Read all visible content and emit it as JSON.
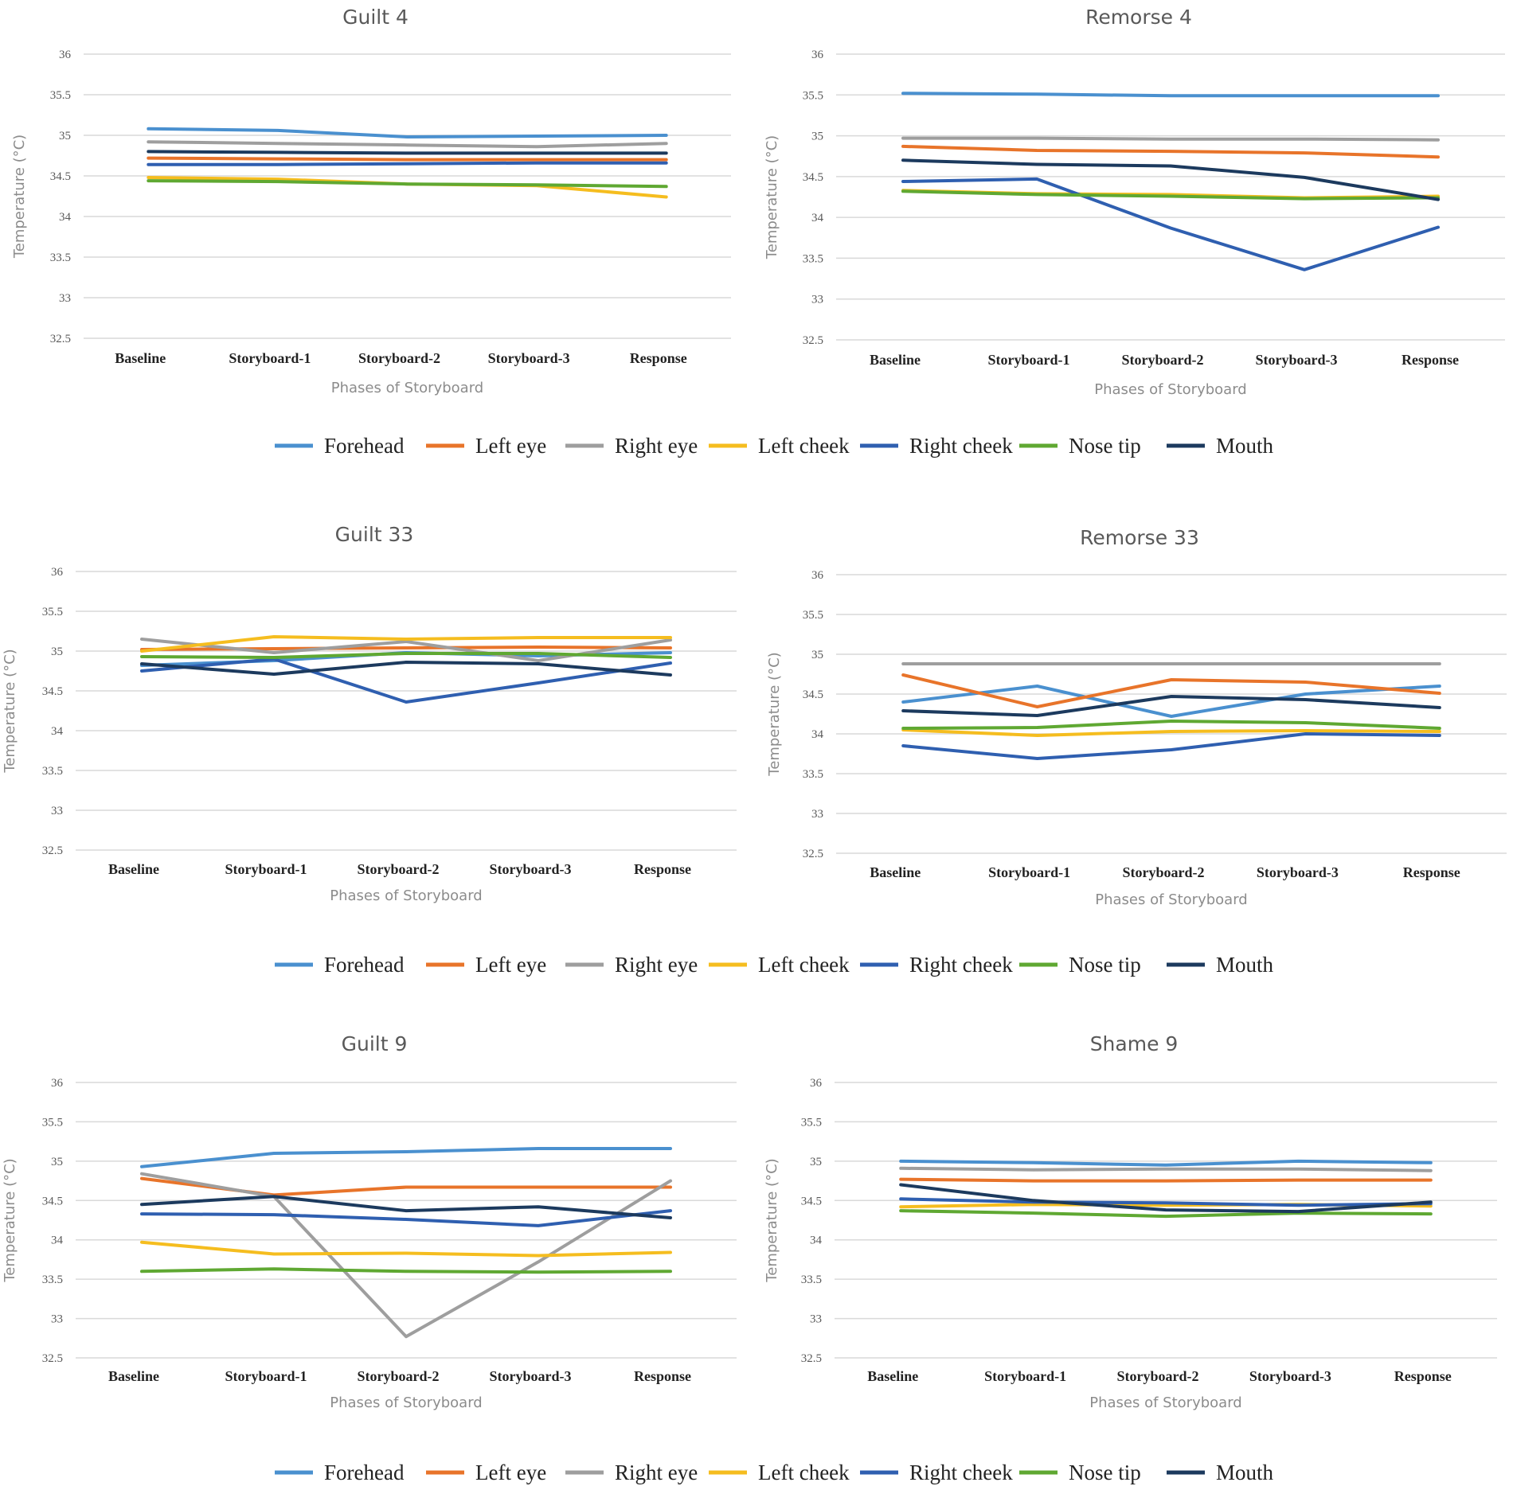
{
  "colors": {
    "Forehead": "#4a90cf",
    "Left eye": "#e8742a",
    "Right eye": "#9e9e9e",
    "Left cheek": "#f5bd1f",
    "Right cheek": "#2f5fb0",
    "Nose tip": "#5fa832",
    "Mouth": "#1c3a5e"
  },
  "legend": [
    "Forehead",
    "Left eye",
    "Right eye",
    "Left cheek",
    "Right cheek",
    "Nose tip",
    "Mouth"
  ],
  "chart_data": [
    {
      "type": "line",
      "title": "Guilt 4",
      "xlabel": "Phases of Storyboard",
      "ylabel": "Temperature (°C)",
      "categories": [
        "Baseline",
        "Storyboard-1",
        "Storyboard-2",
        "Storyboard-3",
        "Response"
      ],
      "ylim": [
        32.5,
        36
      ],
      "yticks": [
        "32.5",
        "33",
        "33.5",
        "34",
        "34.5",
        "35",
        "35.5",
        "36"
      ],
      "series": [
        {
          "name": "Forehead",
          "values": [
            35.08,
            35.06,
            34.98,
            34.99,
            35.0
          ]
        },
        {
          "name": "Left eye",
          "values": [
            34.72,
            34.71,
            34.7,
            34.7,
            34.7
          ]
        },
        {
          "name": "Right eye",
          "values": [
            34.92,
            34.9,
            34.88,
            34.86,
            34.9
          ]
        },
        {
          "name": "Left cheek",
          "values": [
            34.48,
            34.46,
            34.4,
            34.38,
            34.24
          ]
        },
        {
          "name": "Right cheek",
          "values": [
            34.64,
            34.64,
            34.65,
            34.66,
            34.66
          ]
        },
        {
          "name": "Nose tip",
          "values": [
            34.44,
            34.43,
            34.4,
            34.39,
            34.37
          ]
        },
        {
          "name": "Mouth",
          "values": [
            34.8,
            34.79,
            34.78,
            34.78,
            34.78
          ]
        }
      ]
    },
    {
      "type": "line",
      "title": "Remorse 4",
      "xlabel": "Phases of Storyboard",
      "ylabel": "Temperature (°C)",
      "categories": [
        "Baseline",
        "Storyboard-1",
        "Storyboard-2",
        "Storyboard-3",
        "Response"
      ],
      "ylim": [
        32.5,
        36
      ],
      "yticks": [
        "32.5",
        "33",
        "33.5",
        "34",
        "34.5",
        "35",
        "35.5",
        "36"
      ],
      "series": [
        {
          "name": "Forehead",
          "values": [
            35.52,
            35.51,
            35.49,
            35.49,
            35.49
          ]
        },
        {
          "name": "Left eye",
          "values": [
            34.87,
            34.82,
            34.81,
            34.79,
            34.74
          ]
        },
        {
          "name": "Right eye",
          "values": [
            34.97,
            34.97,
            34.96,
            34.96,
            34.95
          ]
        },
        {
          "name": "Left cheek",
          "values": [
            34.33,
            34.29,
            34.28,
            34.24,
            34.26
          ]
        },
        {
          "name": "Right cheek",
          "values": [
            34.44,
            34.47,
            33.87,
            33.36,
            33.88
          ]
        },
        {
          "name": "Nose tip",
          "values": [
            34.32,
            34.28,
            34.26,
            34.23,
            34.24
          ]
        },
        {
          "name": "Mouth",
          "values": [
            34.7,
            34.65,
            34.63,
            34.49,
            34.22
          ]
        }
      ]
    },
    {
      "type": "line",
      "title": "Guilt 33",
      "xlabel": "Phases of Storyboard",
      "ylabel": "Temperature (°C)",
      "categories": [
        "Baseline",
        "Storyboard-1",
        "Storyboard-2",
        "Storyboard-3",
        "Response"
      ],
      "ylim": [
        32.5,
        36
      ],
      "yticks": [
        "32.5",
        "33",
        "33.5",
        "34",
        "34.5",
        "35",
        "35.5",
        "36"
      ],
      "series": [
        {
          "name": "Forehead",
          "values": [
            34.82,
            34.88,
            34.98,
            34.94,
            34.98
          ]
        },
        {
          "name": "Left eye",
          "values": [
            35.02,
            35.03,
            35.04,
            35.05,
            35.04
          ]
        },
        {
          "name": "Right eye",
          "values": [
            35.15,
            34.98,
            35.12,
            34.88,
            35.14
          ]
        },
        {
          "name": "Left cheek",
          "values": [
            35.0,
            35.18,
            35.15,
            35.17,
            35.17
          ]
        },
        {
          "name": "Right cheek",
          "values": [
            34.75,
            34.9,
            34.36,
            34.6,
            34.85
          ]
        },
        {
          "name": "Nose tip",
          "values": [
            34.93,
            34.92,
            34.97,
            34.97,
            34.92
          ]
        },
        {
          "name": "Mouth",
          "values": [
            34.84,
            34.71,
            34.86,
            34.84,
            34.7
          ]
        }
      ]
    },
    {
      "type": "line",
      "title": "Remorse 33",
      "xlabel": "Phases of Storyboard",
      "ylabel": "Temperature (°C)",
      "categories": [
        "Baseline",
        "Storyboard-1",
        "Storyboard-2",
        "Storyboard-3",
        "Response"
      ],
      "ylim": [
        32.5,
        36
      ],
      "yticks": [
        "32.5",
        "33",
        "33.5",
        "34",
        "34.5",
        "35",
        "35.5",
        "36"
      ],
      "series": [
        {
          "name": "Forehead",
          "values": [
            34.4,
            34.6,
            34.22,
            34.5,
            34.6
          ]
        },
        {
          "name": "Left eye",
          "values": [
            34.74,
            34.34,
            34.68,
            34.65,
            34.51
          ]
        },
        {
          "name": "Right eye",
          "values": [
            34.88,
            34.88,
            34.88,
            34.88,
            34.88
          ]
        },
        {
          "name": "Left cheek",
          "values": [
            34.05,
            33.98,
            34.03,
            34.04,
            34.03
          ]
        },
        {
          "name": "Right cheek",
          "values": [
            33.85,
            33.69,
            33.8,
            34.0,
            33.98
          ]
        },
        {
          "name": "Nose tip",
          "values": [
            34.07,
            34.08,
            34.16,
            34.14,
            34.07
          ]
        },
        {
          "name": "Mouth",
          "values": [
            34.29,
            34.23,
            34.47,
            34.43,
            34.33
          ]
        }
      ]
    },
    {
      "type": "line",
      "title": "Guilt 9",
      "xlabel": "Phases of Storyboard",
      "ylabel": "Temperature (°C)",
      "categories": [
        "Baseline",
        "Storyboard-1",
        "Storyboard-2",
        "Storyboard-3",
        "Response"
      ],
      "ylim": [
        32.5,
        36
      ],
      "yticks": [
        "32.5",
        "33",
        "33.5",
        "34",
        "34.5",
        "35",
        "35.5",
        "36"
      ],
      "series": [
        {
          "name": "Forehead",
          "values": [
            34.93,
            35.1,
            35.12,
            35.16,
            35.16
          ]
        },
        {
          "name": "Left eye",
          "values": [
            34.78,
            34.57,
            34.67,
            34.67,
            34.67
          ]
        },
        {
          "name": "Right eye",
          "values": [
            34.84,
            34.55,
            32.77,
            33.72,
            34.75
          ]
        },
        {
          "name": "Left cheek",
          "values": [
            33.97,
            33.82,
            33.83,
            33.8,
            33.84
          ]
        },
        {
          "name": "Right cheek",
          "values": [
            34.33,
            34.32,
            34.26,
            34.18,
            34.37
          ]
        },
        {
          "name": "Nose tip",
          "values": [
            33.6,
            33.63,
            33.6,
            33.59,
            33.6
          ]
        },
        {
          "name": "Mouth",
          "values": [
            34.45,
            34.55,
            34.37,
            34.42,
            34.28
          ]
        }
      ]
    },
    {
      "type": "line",
      "title": "Shame 9",
      "xlabel": "Phases of Storyboard",
      "ylabel": "Temperature (°C)",
      "categories": [
        "Baseline",
        "Storyboard-1",
        "Storyboard-2",
        "Storyboard-3",
        "Response"
      ],
      "ylim": [
        32.5,
        36
      ],
      "yticks": [
        "32.5",
        "33",
        "33.5",
        "34",
        "34.5",
        "35",
        "35.5",
        "36"
      ],
      "series": [
        {
          "name": "Forehead",
          "values": [
            35.0,
            34.98,
            34.95,
            35.0,
            34.98
          ]
        },
        {
          "name": "Left eye",
          "values": [
            34.77,
            34.75,
            34.75,
            34.76,
            34.76
          ]
        },
        {
          "name": "Right eye",
          "values": [
            34.91,
            34.89,
            34.9,
            34.9,
            34.88
          ]
        },
        {
          "name": "Left cheek",
          "values": [
            34.42,
            34.45,
            34.44,
            34.45,
            34.43
          ]
        },
        {
          "name": "Right cheek",
          "values": [
            34.52,
            34.48,
            34.47,
            34.44,
            34.46
          ]
        },
        {
          "name": "Nose tip",
          "values": [
            34.37,
            34.34,
            34.3,
            34.34,
            34.33
          ]
        },
        {
          "name": "Mouth",
          "values": [
            34.7,
            34.5,
            34.38,
            34.36,
            34.48
          ]
        }
      ]
    }
  ]
}
